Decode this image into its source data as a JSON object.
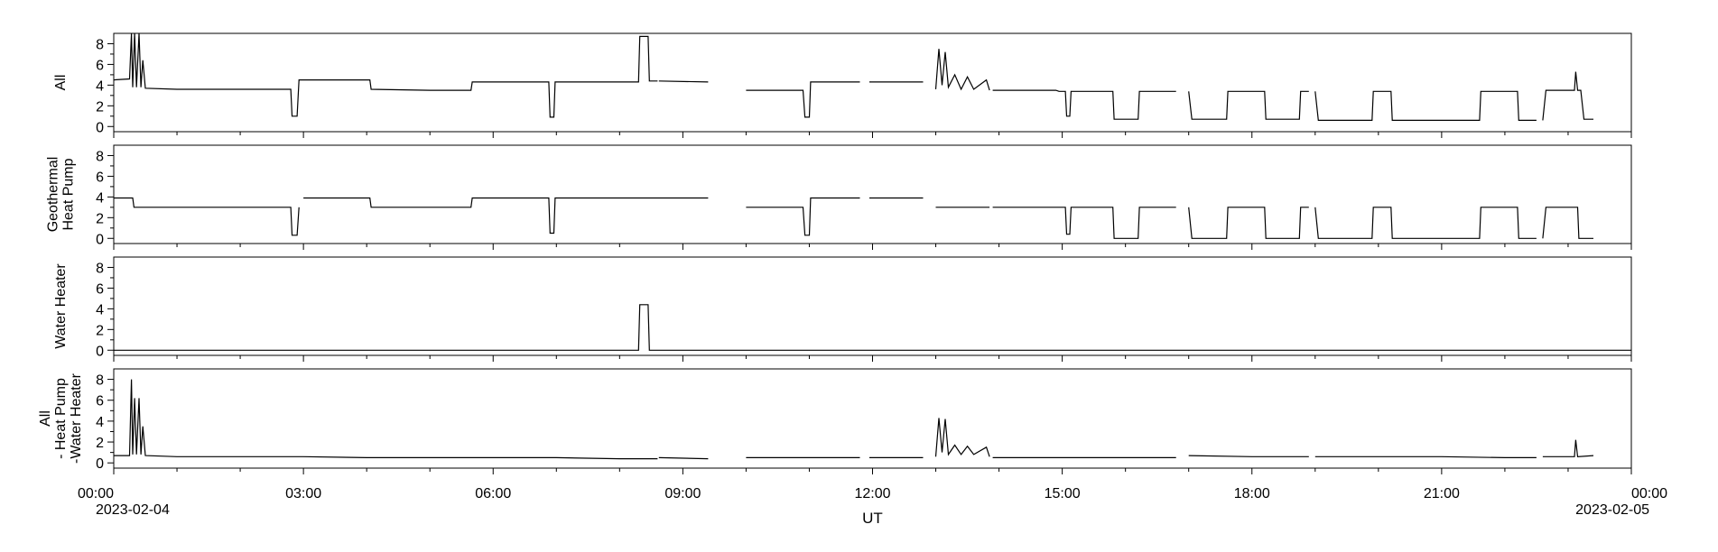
{
  "chart_data": {
    "type": "line",
    "xlabel": "UT",
    "x_unit": "hours since 2023-02-04 00:00 UT",
    "xlim": [
      0,
      24
    ],
    "x_ticks": [
      {
        "value": 0,
        "label": "00:00",
        "sublabel": "2023-02-04"
      },
      {
        "value": 3,
        "label": "03:00",
        "sublabel": ""
      },
      {
        "value": 6,
        "label": "06:00",
        "sublabel": ""
      },
      {
        "value": 9,
        "label": "09:00",
        "sublabel": ""
      },
      {
        "value": 12,
        "label": "12:00",
        "sublabel": ""
      },
      {
        "value": 15,
        "label": "15:00",
        "sublabel": ""
      },
      {
        "value": 18,
        "label": "18:00",
        "sublabel": ""
      },
      {
        "value": 21,
        "label": "21:00",
        "sublabel": ""
      },
      {
        "value": 24,
        "label": "00:00",
        "sublabel": "2023-02-05"
      }
    ],
    "ylim": [
      -0.5,
      9
    ],
    "y_ticks": [
      0,
      2,
      4,
      6,
      8
    ],
    "panels": [
      {
        "name": "All",
        "ylabel_lines": [
          "All"
        ],
        "points": [
          [
            0,
            4.5
          ],
          [
            0.25,
            4.6
          ],
          [
            0.28,
            9
          ],
          [
            0.3,
            3.8
          ],
          [
            0.33,
            9
          ],
          [
            0.36,
            3.8
          ],
          [
            0.4,
            9
          ],
          [
            0.43,
            3.8
          ],
          [
            0.46,
            6.4
          ],
          [
            0.5,
            3.7
          ],
          [
            1,
            3.6
          ],
          [
            2,
            3.6
          ],
          [
            2.8,
            3.6
          ],
          [
            2.82,
            1
          ],
          [
            2.9,
            1
          ],
          [
            2.93,
            4.5
          ],
          [
            3.5,
            4.5
          ],
          [
            4.05,
            4.5
          ],
          [
            4.07,
            3.6
          ],
          [
            5,
            3.5
          ],
          [
            5.65,
            3.5
          ],
          [
            5.67,
            4.3
          ],
          [
            6.5,
            4.3
          ],
          [
            6.88,
            4.3
          ],
          [
            6.9,
            0.9
          ],
          [
            6.96,
            0.9
          ],
          [
            6.98,
            4.3
          ],
          [
            8,
            4.3
          ],
          [
            8.3,
            4.3
          ],
          [
            8.32,
            8.7
          ],
          [
            8.45,
            8.7
          ],
          [
            8.47,
            4.4
          ],
          [
            8.6,
            4.4
          ],
          [
            null,
            null
          ],
          [
            8.62,
            4.4
          ],
          [
            9.4,
            4.3
          ],
          [
            null,
            null
          ],
          [
            10,
            3.5
          ],
          [
            10.9,
            3.5
          ],
          [
            10.93,
            0.9
          ],
          [
            11,
            0.9
          ],
          [
            11.02,
            4.3
          ],
          [
            11.8,
            4.3
          ],
          [
            null,
            null
          ],
          [
            11.95,
            4.3
          ],
          [
            12.8,
            4.3
          ],
          [
            null,
            null
          ],
          [
            13,
            3.6
          ],
          [
            13.05,
            7.5
          ],
          [
            13.1,
            4
          ],
          [
            13.15,
            7.2
          ],
          [
            13.2,
            3.8
          ],
          [
            13.3,
            5
          ],
          [
            13.4,
            3.6
          ],
          [
            13.5,
            4.8
          ],
          [
            13.6,
            3.6
          ],
          [
            13.8,
            4.5
          ],
          [
            13.85,
            3.5
          ],
          [
            null,
            null
          ],
          [
            13.9,
            3.5
          ],
          [
            14.9,
            3.5
          ],
          [
            14.95,
            3.4
          ],
          [
            15.05,
            3.4
          ],
          [
            15.07,
            1
          ],
          [
            15.12,
            1
          ],
          [
            15.14,
            3.4
          ],
          [
            15.8,
            3.4
          ],
          [
            15.82,
            0.7
          ],
          [
            16.2,
            0.7
          ],
          [
            16.22,
            3.4
          ],
          [
            16.8,
            3.4
          ],
          [
            null,
            null
          ],
          [
            17,
            3.4
          ],
          [
            17.05,
            0.7
          ],
          [
            17.6,
            0.7
          ],
          [
            17.62,
            3.4
          ],
          [
            18.2,
            3.4
          ],
          [
            18.22,
            0.7
          ],
          [
            18.75,
            0.7
          ],
          [
            18.77,
            3.4
          ],
          [
            18.9,
            3.4
          ],
          [
            null,
            null
          ],
          [
            19,
            3.4
          ],
          [
            19.05,
            0.6
          ],
          [
            19.9,
            0.6
          ],
          [
            19.92,
            3.4
          ],
          [
            20.2,
            3.4
          ],
          [
            20.22,
            0.6
          ],
          [
            21.6,
            0.6
          ],
          [
            21.62,
            3.4
          ],
          [
            22.2,
            3.4
          ],
          [
            22.22,
            0.6
          ],
          [
            22.5,
            0.6
          ],
          [
            null,
            null
          ],
          [
            22.6,
            0.6
          ],
          [
            22.65,
            3.5
          ],
          [
            23.1,
            3.5
          ],
          [
            23.12,
            5.3
          ],
          [
            23.15,
            3.5
          ],
          [
            23.2,
            3.5
          ],
          [
            23.25,
            0.7
          ],
          [
            23.4,
            0.7
          ]
        ]
      },
      {
        "name": "Geothermal Heat Pump",
        "ylabel_lines": [
          "Geothermal",
          "Heat Pump"
        ],
        "points": [
          [
            0,
            3.9
          ],
          [
            0.3,
            3.9
          ],
          [
            0.32,
            3.0
          ],
          [
            1,
            3.0
          ],
          [
            2,
            3.0
          ],
          [
            2.8,
            3.0
          ],
          [
            2.82,
            0.3
          ],
          [
            2.9,
            0.3
          ],
          [
            2.93,
            3.0
          ],
          [
            null,
            null
          ],
          [
            3,
            3.9
          ],
          [
            4.05,
            3.9
          ],
          [
            4.07,
            3.0
          ],
          [
            5.65,
            3.0
          ],
          [
            5.67,
            3.9
          ],
          [
            6.88,
            3.9
          ],
          [
            6.9,
            0.5
          ],
          [
            6.96,
            0.5
          ],
          [
            6.98,
            3.9
          ],
          [
            8,
            3.9
          ],
          [
            9,
            3.9
          ],
          [
            9.4,
            3.9
          ],
          [
            null,
            null
          ],
          [
            10,
            3.0
          ],
          [
            10.9,
            3.0
          ],
          [
            10.93,
            0.3
          ],
          [
            11,
            0.3
          ],
          [
            11.02,
            3.9
          ],
          [
            11.8,
            3.9
          ],
          [
            null,
            null
          ],
          [
            11.95,
            3.9
          ],
          [
            12.8,
            3.9
          ],
          [
            null,
            null
          ],
          [
            13,
            3.0
          ],
          [
            13.85,
            3.0
          ],
          [
            null,
            null
          ],
          [
            13.9,
            3.0
          ],
          [
            14.9,
            3.0
          ],
          [
            15.05,
            3.0
          ],
          [
            15.07,
            0.4
          ],
          [
            15.12,
            0.4
          ],
          [
            15.14,
            3.0
          ],
          [
            15.8,
            3.0
          ],
          [
            15.82,
            0
          ],
          [
            16.2,
            0
          ],
          [
            16.22,
            3.0
          ],
          [
            16.8,
            3.0
          ],
          [
            null,
            null
          ],
          [
            17,
            3.0
          ],
          [
            17.05,
            0
          ],
          [
            17.6,
            0
          ],
          [
            17.62,
            3.0
          ],
          [
            18.2,
            3.0
          ],
          [
            18.22,
            0
          ],
          [
            18.75,
            0
          ],
          [
            18.77,
            3.0
          ],
          [
            18.9,
            3.0
          ],
          [
            null,
            null
          ],
          [
            19,
            3.0
          ],
          [
            19.05,
            0
          ],
          [
            19.9,
            0
          ],
          [
            19.92,
            3.0
          ],
          [
            20.2,
            3.0
          ],
          [
            20.22,
            0
          ],
          [
            21.6,
            0
          ],
          [
            21.62,
            3.0
          ],
          [
            22.2,
            3.0
          ],
          [
            22.22,
            0
          ],
          [
            22.5,
            0
          ],
          [
            null,
            null
          ],
          [
            22.6,
            0
          ],
          [
            22.65,
            3.0
          ],
          [
            23.15,
            3.0
          ],
          [
            23.17,
            0
          ],
          [
            23.4,
            0
          ]
        ]
      },
      {
        "name": "Water Heater",
        "ylabel_lines": [
          "Water Heater"
        ],
        "points": [
          [
            0,
            0
          ],
          [
            8.3,
            0
          ],
          [
            8.32,
            4.4
          ],
          [
            8.45,
            4.4
          ],
          [
            8.47,
            0
          ],
          [
            24,
            0
          ]
        ]
      },
      {
        "name": "All - Heat Pump - Water Heater",
        "ylabel_lines": [
          "All",
          " - Heat Pump",
          " -Water Heater"
        ],
        "points": [
          [
            0,
            0.7
          ],
          [
            0.25,
            0.7
          ],
          [
            0.28,
            8
          ],
          [
            0.3,
            0.8
          ],
          [
            0.33,
            6.2
          ],
          [
            0.36,
            0.8
          ],
          [
            0.4,
            6.2
          ],
          [
            0.43,
            0.8
          ],
          [
            0.46,
            3.5
          ],
          [
            0.5,
            0.7
          ],
          [
            1,
            0.6
          ],
          [
            2,
            0.6
          ],
          [
            3,
            0.6
          ],
          [
            4,
            0.5
          ],
          [
            5,
            0.5
          ],
          [
            6,
            0.5
          ],
          [
            7,
            0.5
          ],
          [
            8,
            0.4
          ],
          [
            8.6,
            0.4
          ],
          [
            null,
            null
          ],
          [
            8.62,
            0.5
          ],
          [
            9.4,
            0.4
          ],
          [
            null,
            null
          ],
          [
            10,
            0.5
          ],
          [
            11,
            0.5
          ],
          [
            11.8,
            0.5
          ],
          [
            null,
            null
          ],
          [
            11.95,
            0.5
          ],
          [
            12.8,
            0.5
          ],
          [
            null,
            null
          ],
          [
            13,
            0.6
          ],
          [
            13.05,
            4.3
          ],
          [
            13.1,
            1
          ],
          [
            13.15,
            4.2
          ],
          [
            13.2,
            0.8
          ],
          [
            13.3,
            1.7
          ],
          [
            13.4,
            0.8
          ],
          [
            13.5,
            1.6
          ],
          [
            13.6,
            0.8
          ],
          [
            13.8,
            1.5
          ],
          [
            13.85,
            0.6
          ],
          [
            null,
            null
          ],
          [
            13.9,
            0.5
          ],
          [
            15,
            0.5
          ],
          [
            16,
            0.5
          ],
          [
            16.8,
            0.5
          ],
          [
            null,
            null
          ],
          [
            17,
            0.7
          ],
          [
            18,
            0.6
          ],
          [
            18.9,
            0.6
          ],
          [
            null,
            null
          ],
          [
            19,
            0.6
          ],
          [
            20,
            0.6
          ],
          [
            21,
            0.6
          ],
          [
            22,
            0.5
          ],
          [
            22.5,
            0.5
          ],
          [
            null,
            null
          ],
          [
            22.6,
            0.6
          ],
          [
            23.1,
            0.6
          ],
          [
            23.12,
            2.2
          ],
          [
            23.15,
            0.6
          ],
          [
            23.4,
            0.7
          ]
        ]
      }
    ]
  }
}
